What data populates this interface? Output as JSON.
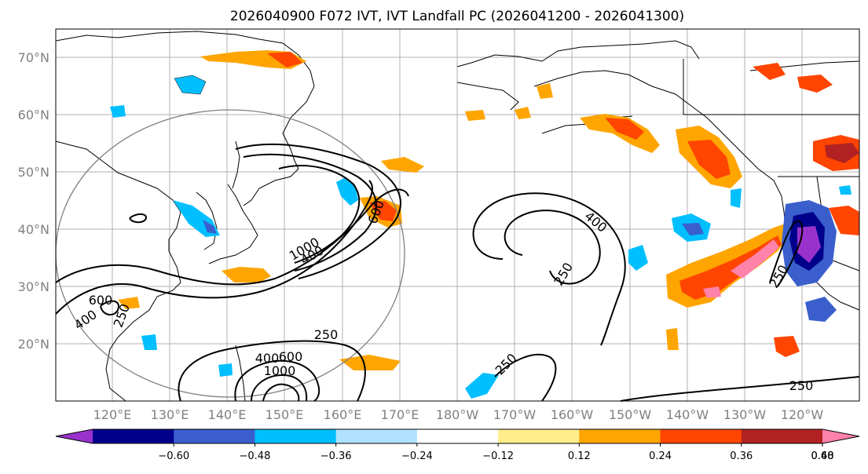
{
  "title": "2026040900 F072 IVT, IVT Landfall PC (2026041200 - 2026041300)",
  "lat_labels": [
    "70°N",
    "60°N",
    "50°N",
    "40°N",
    "30°N",
    "20°N"
  ],
  "lon_labels": [
    "120°E",
    "130°E",
    "140°E",
    "150°E",
    "160°E",
    "170°E",
    "180°W",
    "170°W",
    "160°W",
    "150°W",
    "140°W",
    "130°W",
    "120°W"
  ],
  "contour_labels": [
    "250",
    "400",
    "600",
    "1000",
    "400",
    "250",
    "250",
    "250",
    "400",
    "600",
    "1000",
    "250",
    "400",
    "600",
    "250"
  ],
  "colorbar": {
    "colors": [
      "#9932cc",
      "#00008b",
      "#3a5fcd",
      "#00bfff",
      "#b0e2ff",
      "#ffffff",
      "#ffec8b",
      "#ffa500",
      "#ff4500",
      "#b22222",
      "#ff82ab"
    ],
    "tick_labels": [
      "−0.60",
      "−0.48",
      "−0.36",
      "−0.24",
      "−0.12",
      "0.12",
      "0.24",
      "0.36",
      "0.48",
      "0.60"
    ]
  }
}
